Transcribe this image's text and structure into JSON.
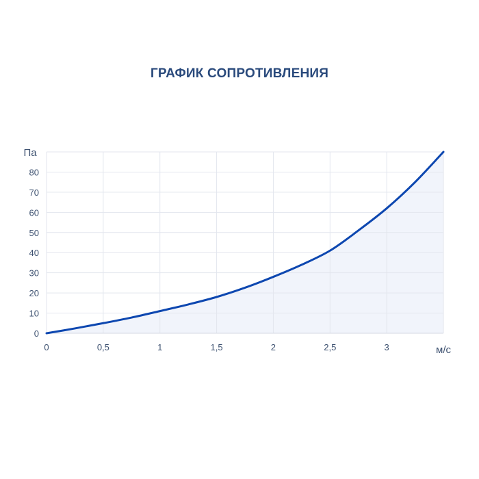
{
  "chart_data": {
    "type": "area",
    "title": "ГРАФИК СОПРОТИВЛЕНИЯ",
    "xlabel": "м/с",
    "ylabel": "Па",
    "xlim": [
      0,
      3.5
    ],
    "ylim": [
      0,
      90
    ],
    "x_ticks": [
      0,
      0.5,
      1,
      1.5,
      2,
      2.5,
      3,
      3.5
    ],
    "x_tick_labels": [
      "0",
      "0,5",
      "1",
      "1,5",
      "2",
      "2,5",
      "3",
      ""
    ],
    "y_ticks": [
      0,
      10,
      20,
      30,
      40,
      50,
      60,
      70,
      80,
      90
    ],
    "y_tick_labels": [
      "0",
      "10",
      "20",
      "30",
      "40",
      "50",
      "60",
      "70",
      "80",
      ""
    ],
    "grid": true,
    "x": [
      0,
      0.25,
      0.5,
      0.75,
      1,
      1.25,
      1.5,
      1.75,
      2,
      2.25,
      2.5,
      2.75,
      3,
      3.25,
      3.5
    ],
    "y": [
      0,
      2.4,
      5,
      7.8,
      11,
      14.3,
      18,
      22.6,
      28,
      34,
      41,
      51,
      62,
      75,
      90
    ],
    "colors": {
      "line": "#0d47b0",
      "fill": "#f1f4fb",
      "grid": "#e3e6ee",
      "title": "#2a4a7c"
    }
  }
}
